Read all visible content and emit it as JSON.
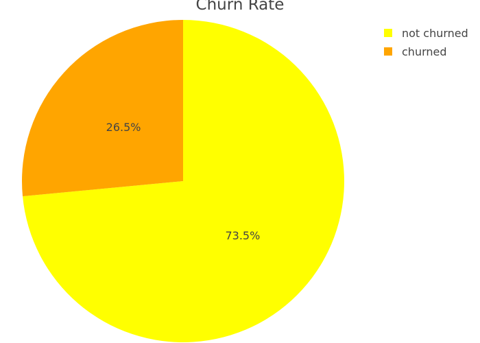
{
  "chart_data": {
    "type": "pie",
    "title": "Churn Rate",
    "categories": [
      "not churned",
      "churned"
    ],
    "values": [
      73.5,
      26.5
    ],
    "labels": [
      "73.5%",
      "26.5%"
    ],
    "colors": [
      "#ffff00",
      "#ffa500"
    ],
    "legend_position": "top-right",
    "direction": "clockwise",
    "start_angle": "12 o'clock"
  }
}
